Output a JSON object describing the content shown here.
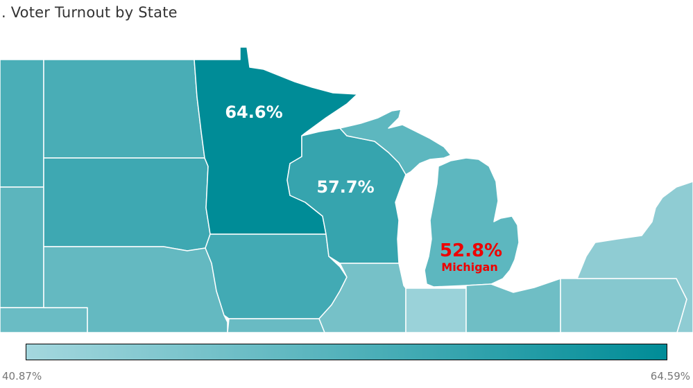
{
  "title": ". Voter Turnout by State",
  "colors": {
    "scale_min": "#a4d7de",
    "scale_max": "#008c97",
    "label_default": "#ffffff",
    "label_highlight": "#ee0000",
    "border": "#ffffff",
    "water": "#ffffff"
  },
  "legend": {
    "min_label": "40.87%",
    "max_label": "64.59%",
    "min_value": 40.87,
    "max_value": 64.59
  },
  "states": [
    {
      "name": "Minnesota",
      "turnout": 64.6,
      "label": "64.6%",
      "highlight": false
    },
    {
      "name": "Wisconsin",
      "turnout": 57.7,
      "label": "57.7%",
      "highlight": false
    },
    {
      "name": "Michigan",
      "turnout": 52.8,
      "label": "52.8%",
      "sublabel": "Michigan",
      "highlight": true
    }
  ]
}
